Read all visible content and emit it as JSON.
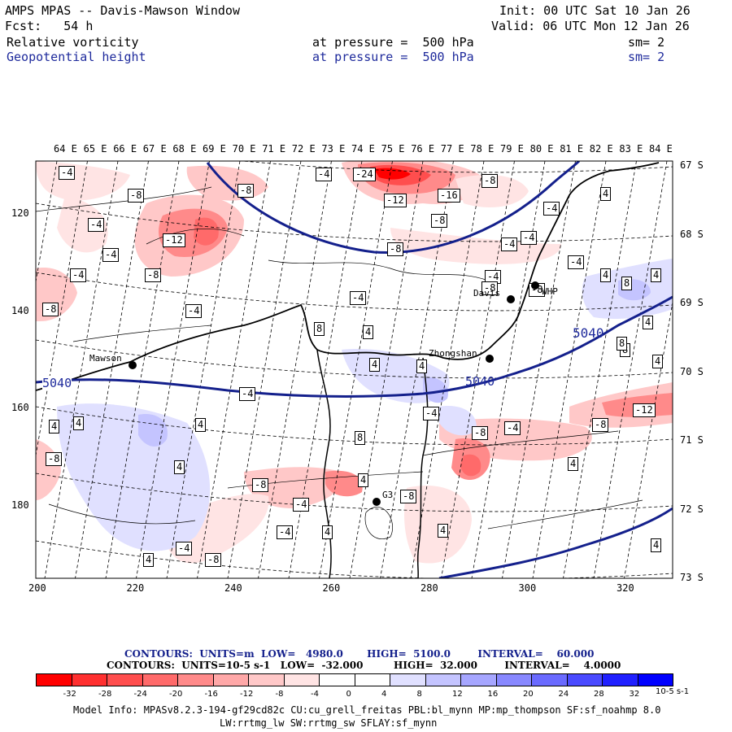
{
  "header": {
    "title": "AMPS MPAS -- Davis-Mawson Window",
    "init": "Init: 00 UTC Sat 10 Jan 26",
    "fcst": "Fcst:   54 h",
    "valid": "Valid: 06 UTC Mon 12 Jan 26",
    "field1": "Relative vorticity",
    "field1_level": "at pressure =  500 hPa",
    "field1_sm": "sm= 2",
    "field2": "Geopotential height",
    "field2_level": "at pressure =  500 hPa",
    "field2_sm": "sm= 2"
  },
  "map": {
    "lon_labels": [
      "64 E",
      "65 E",
      "66 E",
      "67 E",
      "68 E",
      "69 E",
      "70 E",
      "71 E",
      "72 E",
      "73 E",
      "74 E",
      "75 E",
      "76 E",
      "77 E",
      "78 E",
      "79 E",
      "80 E",
      "81 E",
      "82 E",
      "83 E",
      "84 E"
    ],
    "lat_labels": [
      "67 S",
      "68 S",
      "69 S",
      "70 S",
      "71 S",
      "72 S",
      "73 S"
    ],
    "x_ticks": [
      "200",
      "220",
      "240",
      "260",
      "280",
      "300",
      "320"
    ],
    "y_ticks": [
      "120",
      "140",
      "160",
      "180"
    ],
    "stations": [
      {
        "name": "Mawson"
      },
      {
        "name": "Zhongshan"
      },
      {
        "name": "Davis"
      },
      {
        "name": "WHP"
      },
      {
        "name": "G3"
      }
    ],
    "height_labels": [
      "5040",
      "5040",
      "5040"
    ],
    "vort_labels": [
      "-4",
      "-8",
      "-24",
      "-12",
      "-16",
      "-8",
      "-8",
      "-4",
      "-8",
      "-12",
      "-4",
      "-8",
      "-4",
      "-4",
      "-8",
      "-4",
      "-4",
      "-4",
      "-8",
      "-4",
      "-4",
      "-4",
      "4",
      "8",
      "4",
      "4",
      "4",
      "8",
      "4",
      "4",
      "8",
      "4",
      "4",
      "-8",
      "-12",
      "-8",
      "-4",
      "-8",
      "4",
      "8",
      "4",
      "-4",
      "4",
      "-8",
      "-4",
      "4",
      "-8",
      "4",
      "4",
      "-4",
      "4",
      "-8",
      "-4",
      "-4",
      "-8",
      "8",
      "4",
      "4",
      "4",
      "-8",
      "-4"
    ]
  },
  "footer": {
    "contours_height": "CONTOURS:  UNITS=m  LOW=   4980.0       HIGH=  5100.0        INTERVAL=    60.000",
    "contours_vort": "CONTOURS:  UNITS=10-5 s-1   LOW=  -32.000         HIGH=  32.000        INTERVAL=    4.0000",
    "colorbar_ticks": [
      "-32",
      "-28",
      "-24",
      "-20",
      "-16",
      "-12",
      "-8",
      "-4",
      "0",
      "4",
      "8",
      "12",
      "16",
      "20",
      "24",
      "28",
      "32"
    ],
    "colorbar_units": "10-5 s-1",
    "colorbar_colors": [
      "#ff0000",
      "#ff3030",
      "#ff4e4e",
      "#ff6a6a",
      "#ff8a8a",
      "#ffa8a8",
      "#ffc8c8",
      "#ffe4e4",
      "#ffffff",
      "#ffffff",
      "#e0e0ff",
      "#c4c4ff",
      "#a6a6ff",
      "#8888ff",
      "#6a6aff",
      "#4a4aff",
      "#2020ff",
      "#0000ff"
    ],
    "model_info1": "Model Info: MPASv8.2.3-194-gf29cd82c CU:cu_grell_freitas PBL:bl_mynn MP:mp_thompson SF:sf_noahmp 8.0",
    "model_info2": "LW:rrtmg_lw SW:rrtmg_sw SFLAY:sf_mynn"
  }
}
